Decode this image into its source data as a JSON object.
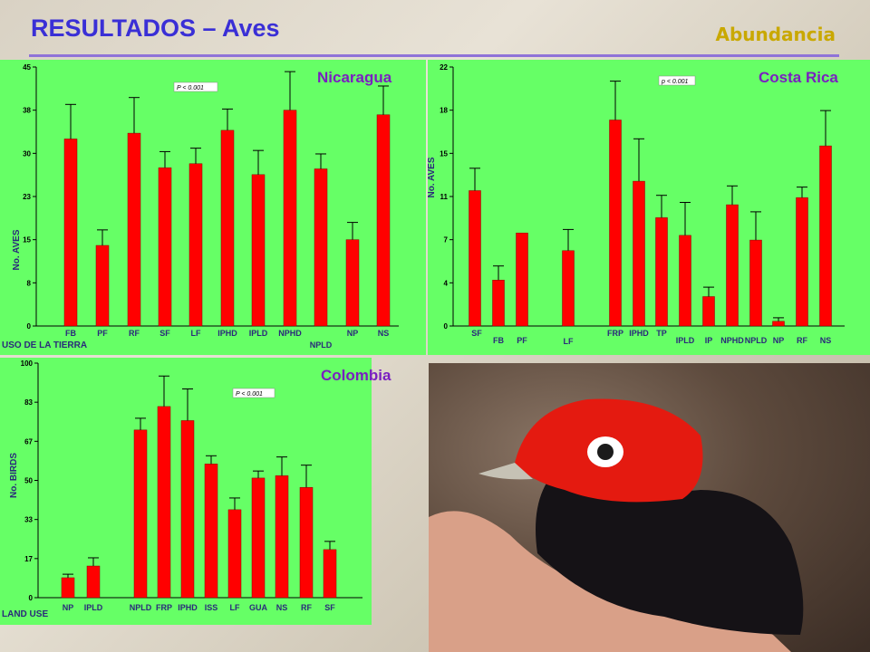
{
  "slide": {
    "title": "RESULTADOS – Aves",
    "subtitle": "Abundancia"
  },
  "colors": {
    "panel_bg": "#66ff66",
    "bar": "#ff0000",
    "title": "#3a2fd6",
    "country": "#7a1fc0",
    "subtitle": "#c9a800"
  },
  "photo": {
    "icon": "red-capped-manakin-bird-photo"
  },
  "chart_data": [
    {
      "id": "nicaragua",
      "type": "bar",
      "title": "Nicaragua",
      "ylabel": "No. AVES",
      "xlabel": "USO DE LA TIERRA",
      "annotation": "P < 0.001",
      "ylim": [
        0,
        45
      ],
      "yticks": [
        "0",
        "8",
        "15",
        "23",
        "30",
        "38",
        "45"
      ],
      "grid": false,
      "categories": [
        "FB",
        "PF",
        "RF",
        "SF",
        "LF",
        "IPHD",
        "IPLD",
        "NPHD",
        "NPLD",
        "NP",
        "NS"
      ],
      "values": [
        32.5,
        14,
        33.5,
        27.5,
        28.2,
        34,
        26.3,
        37.5,
        27.3,
        15,
        36.7
      ],
      "errors": [
        6,
        2.7,
        6.2,
        2.8,
        2.7,
        3.7,
        4.2,
        6.7,
        2.6,
        3,
        5
      ]
    },
    {
      "id": "costa-rica",
      "type": "bar",
      "title": "Costa Rica",
      "ylabel": "No. AVES",
      "xlabel": "",
      "annotation": "p < 0.001",
      "ylim": [
        0,
        22
      ],
      "yticks": [
        "0",
        "4",
        "7",
        "11",
        "15",
        "18",
        "22"
      ],
      "grid": false,
      "categories": [
        "SF",
        "FB",
        "PF",
        "LF",
        "FRP",
        "IPHD",
        "TP",
        "IPLD",
        "IP",
        "NPHD",
        "NPLD",
        "NP",
        "RF",
        "NS"
      ],
      "values": [
        11.5,
        3.9,
        7.9,
        6.4,
        17.5,
        12.3,
        9.2,
        7.7,
        2.5,
        10.3,
        7.3,
        0.4,
        10.9,
        15.3
      ],
      "errors": [
        1.9,
        1.2,
        0,
        1.8,
        3.3,
        3.6,
        1.9,
        2.8,
        0.8,
        1.6,
        2.4,
        0.3,
        0.9,
        3
      ]
    },
    {
      "id": "colombia",
      "type": "bar",
      "title": "Colombia",
      "ylabel": "No. BIRDS",
      "xlabel": "LAND USE",
      "annotation": "P < 0.001",
      "ylim": [
        0,
        100
      ],
      "yticks": [
        "0",
        "17",
        "33",
        "50",
        "67",
        "83",
        "100"
      ],
      "grid": false,
      "categories": [
        "NP",
        "IPLD",
        "NPLD",
        "FRP",
        "IPHD",
        "ISS",
        "LF",
        "GUA",
        "NS",
        "RF",
        "SF"
      ],
      "values": [
        8.5,
        13.5,
        71.5,
        81.5,
        75.5,
        57,
        37.5,
        51,
        52,
        47,
        20.5
      ],
      "errors": [
        1.5,
        3.5,
        5,
        13,
        13.5,
        3.5,
        5,
        3,
        8,
        9.5,
        3.5
      ]
    }
  ]
}
